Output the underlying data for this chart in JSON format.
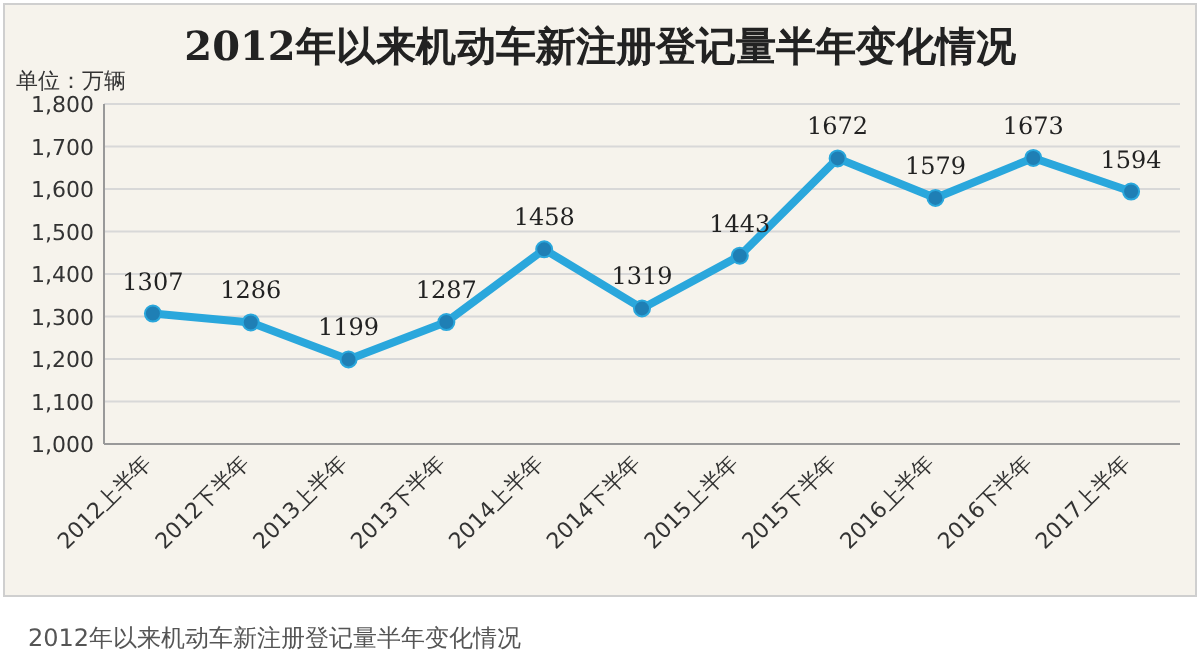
{
  "chart_data": {
    "type": "line",
    "title": "2012年以来机动车新注册登记量半年变化情况",
    "categories": [
      "2012上半年",
      "2012下半年",
      "2013上半年",
      "2013下半年",
      "2014上半年",
      "2014下半年",
      "2015上半年",
      "2015下半年",
      "2016上半年",
      "2016下半年",
      "2017上半年"
    ],
    "series": [
      {
        "color": "#2aa7dc",
        "values": [
          1307,
          1286,
          1199,
          1287,
          1458,
          1319,
          1443,
          1672,
          1579,
          1673,
          1594
        ]
      }
    ],
    "ylim": [
      1000,
      1800
    ],
    "yticks": [
      {
        "value": 1000,
        "label": "1,000"
      },
      {
        "value": 1100,
        "label": "1,100"
      },
      {
        "value": 1200,
        "label": "1,200"
      },
      {
        "value": 1300,
        "label": "1,300"
      },
      {
        "value": 1400,
        "label": "1,400"
      },
      {
        "value": 1500,
        "label": "1,500"
      },
      {
        "value": 1600,
        "label": "1,600"
      },
      {
        "value": 1700,
        "label": "1,700"
      },
      {
        "value": 1800,
        "label": "1,800"
      }
    ],
    "grid": "y",
    "marker": "circle",
    "line_style": "solid",
    "data_labels": true,
    "annotations": [
      "单位：万辆",
      "2012年以来机动车新注册登记量半年变化情况"
    ]
  }
}
